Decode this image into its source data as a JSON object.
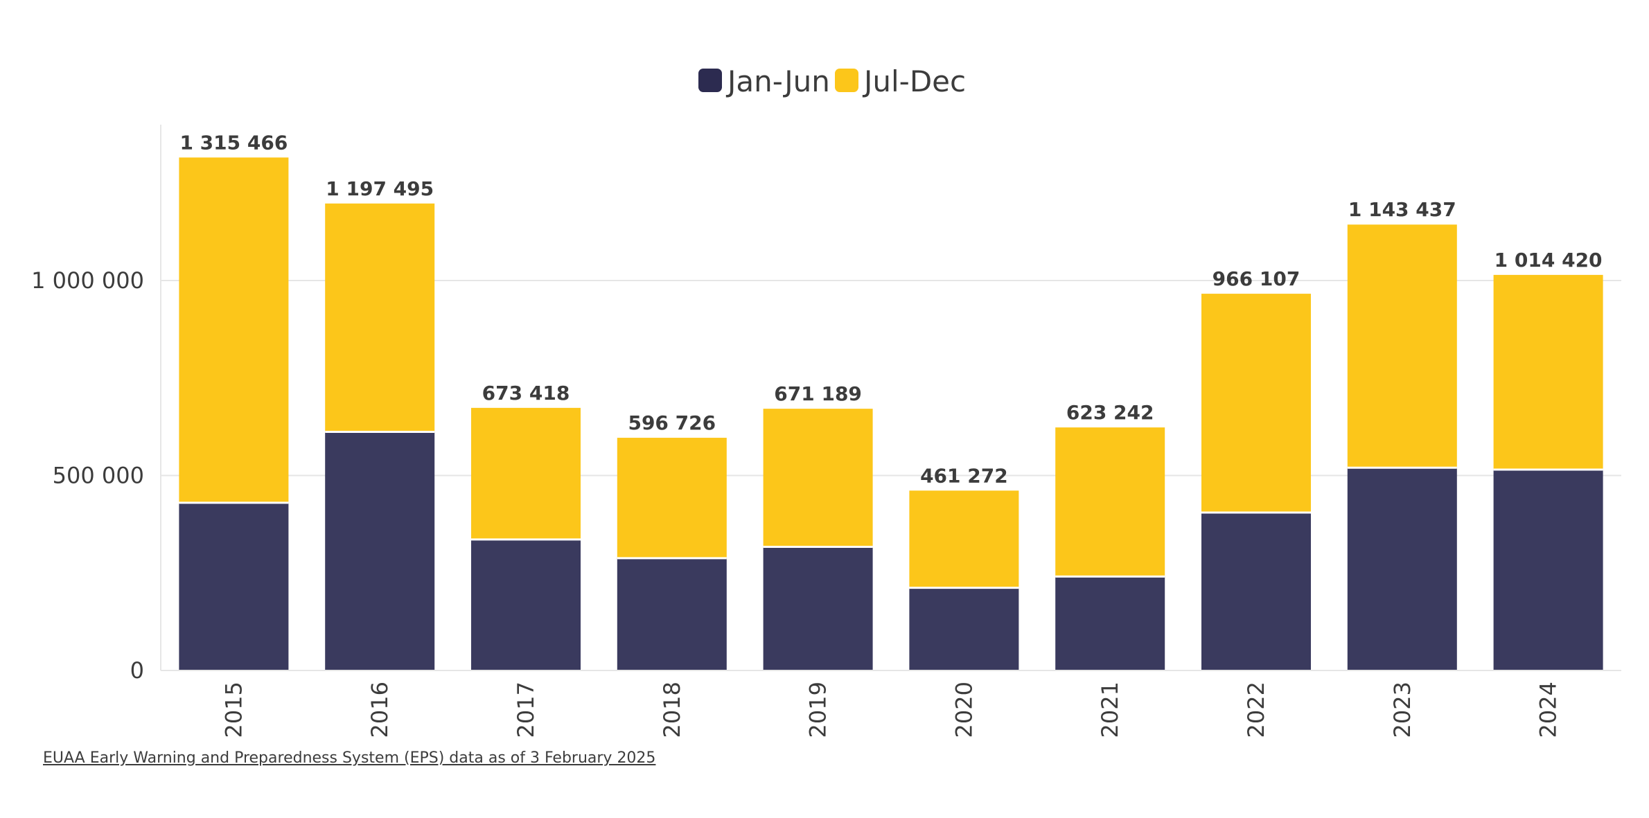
{
  "colors": {
    "jan_jun": "#3a3a5e",
    "jul_dec": "#fcc61a",
    "grid": "#e6e6e6",
    "text": "#3c3c3c"
  },
  "legend": [
    {
      "name": "Jan-Jun",
      "color": "#2c2b50"
    },
    {
      "name": "Jul-Dec",
      "color": "#fcc61a"
    }
  ],
  "source_text": "EUAA Early Warning and Preparedness System (EPS) data as of 3 February 2025",
  "chart_data": {
    "type": "bar",
    "stacked": true,
    "categories": [
      "2015",
      "2016",
      "2017",
      "2018",
      "2019",
      "2020",
      "2021",
      "2022",
      "2023",
      "2024"
    ],
    "series": [
      {
        "name": "Jan-Jun",
        "values": [
          430000,
          612000,
          336000,
          288000,
          317000,
          212000,
          241000,
          405000,
          520000,
          515000
        ]
      },
      {
        "name": "Jul-Dec",
        "values": [
          885466,
          585495,
          337418,
          308726,
          354189,
          249272,
          382242,
          561107,
          623437,
          499420
        ]
      }
    ],
    "totals": [
      "1 315 466",
      "1 197 495",
      "673 418",
      "596 726",
      "671 189",
      "461 272",
      "623 242",
      "966 107",
      "1 143 437",
      "1 014 420"
    ],
    "total_values": [
      1315466,
      1197495,
      673418,
      596726,
      671189,
      461272,
      623242,
      966107,
      1143437,
      1014420
    ],
    "yticks": [
      {
        "value": 0,
        "label": "0"
      },
      {
        "value": 500000,
        "label": "500 000"
      },
      {
        "value": 1000000,
        "label": "1 000 000"
      }
    ],
    "ylim": [
      0,
      1400000
    ],
    "grid": true,
    "legend_position": "top-center"
  }
}
